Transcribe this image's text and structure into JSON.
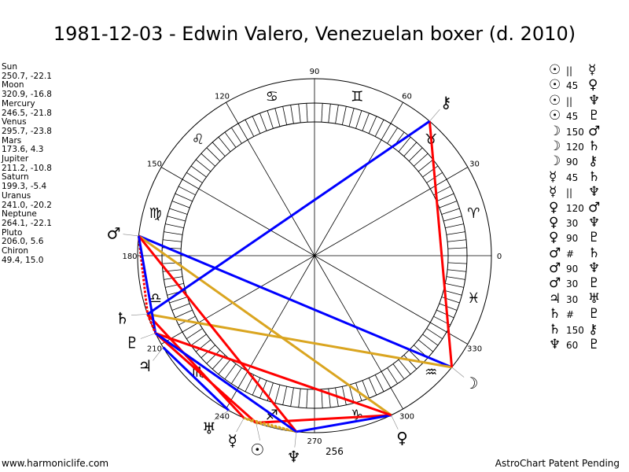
{
  "title": "1981-12-03 - Edwin Valero, Venezuelan boxer (d. 2010)",
  "planets": [
    {
      "name": "Sun",
      "glyph": "☉",
      "lon": 250.7,
      "lat": -22.1,
      "coords": "250.7, -22.1"
    },
    {
      "name": "Moon",
      "glyph": "☽",
      "lon": 320.9,
      "lat": -16.8,
      "coords": "320.9, -16.8"
    },
    {
      "name": "Mercury",
      "glyph": "☿",
      "lon": 246.5,
      "lat": -21.8,
      "coords": "246.5, -21.8"
    },
    {
      "name": "Venus",
      "glyph": "♀",
      "lon": 295.7,
      "lat": -23.8,
      "coords": "295.7, -23.8"
    },
    {
      "name": "Mars",
      "glyph": "♂",
      "lon": 173.6,
      "lat": 4.3,
      "coords": "173.6, 4.3"
    },
    {
      "name": "Jupiter",
      "glyph": "♃",
      "lon": 211.2,
      "lat": -10.8,
      "coords": "211.2, -10.8"
    },
    {
      "name": "Saturn",
      "glyph": "♄",
      "lon": 199.3,
      "lat": -5.4,
      "coords": "199.3, -5.4"
    },
    {
      "name": "Uranus",
      "glyph": "♅",
      "lon": 241.0,
      "lat": -20.2,
      "coords": "241.0, -20.2"
    },
    {
      "name": "Neptune",
      "glyph": "♆",
      "lon": 264.1,
      "lat": -22.1,
      "coords": "264.1, -22.1"
    },
    {
      "name": "Pluto",
      "glyph": "♇",
      "lon": 206.0,
      "lat": 5.6,
      "coords": "206.0, 5.6"
    },
    {
      "name": "Chiron",
      "glyph": "⚷",
      "lon": 49.4,
      "lat": 15.0,
      "coords": "49.4, 15.0"
    }
  ],
  "aspects": [
    {
      "p1": "Sun",
      "type": "||",
      "p2": "Mercury"
    },
    {
      "p1": "Sun",
      "type": "45",
      "p2": "Venus"
    },
    {
      "p1": "Sun",
      "type": "||",
      "p2": "Neptune"
    },
    {
      "p1": "Sun",
      "type": "45",
      "p2": "Pluto"
    },
    {
      "p1": "Moon",
      "type": "150",
      "p2": "Mars"
    },
    {
      "p1": "Moon",
      "type": "120",
      "p2": "Saturn"
    },
    {
      "p1": "Moon",
      "type": "90",
      "p2": "Chiron"
    },
    {
      "p1": "Mercury",
      "type": "45",
      "p2": "Saturn"
    },
    {
      "p1": "Mercury",
      "type": "||",
      "p2": "Neptune"
    },
    {
      "p1": "Venus",
      "type": "120",
      "p2": "Mars"
    },
    {
      "p1": "Venus",
      "type": "30",
      "p2": "Neptune"
    },
    {
      "p1": "Venus",
      "type": "90",
      "p2": "Pluto"
    },
    {
      "p1": "Mars",
      "type": "#",
      "p2": "Saturn"
    },
    {
      "p1": "Mars",
      "type": "90",
      "p2": "Neptune"
    },
    {
      "p1": "Mars",
      "type": "30",
      "p2": "Pluto"
    },
    {
      "p1": "Jupiter",
      "type": "30",
      "p2": "Uranus"
    },
    {
      "p1": "Saturn",
      "type": "#",
      "p2": "Pluto"
    },
    {
      "p1": "Saturn",
      "type": "150",
      "p2": "Chiron"
    },
    {
      "p1": "Neptune",
      "type": "60",
      "p2": "Pluto"
    }
  ],
  "aspect_colors": {
    "30": "#0000ff",
    "45": "#ff0000",
    "60": "#0000ff",
    "90": "#ff0000",
    "120": "#daa520",
    "150": "#0000ff",
    "||": "#daa520",
    "#": "#ff0000"
  },
  "signs": [
    "♈",
    "♉",
    "♊",
    "♋",
    "♌",
    "♍",
    "♎",
    "♏",
    "♐",
    "♑",
    "♒",
    "♓"
  ],
  "degree_labels": [
    "0",
    "30",
    "60",
    "90",
    "120",
    "150",
    "180",
    "210",
    "240",
    "270",
    "300",
    "330"
  ],
  "extra_label": "256",
  "footer": {
    "left": "www.harmoniclife.com",
    "right": "AstroChart Patent Pending"
  }
}
